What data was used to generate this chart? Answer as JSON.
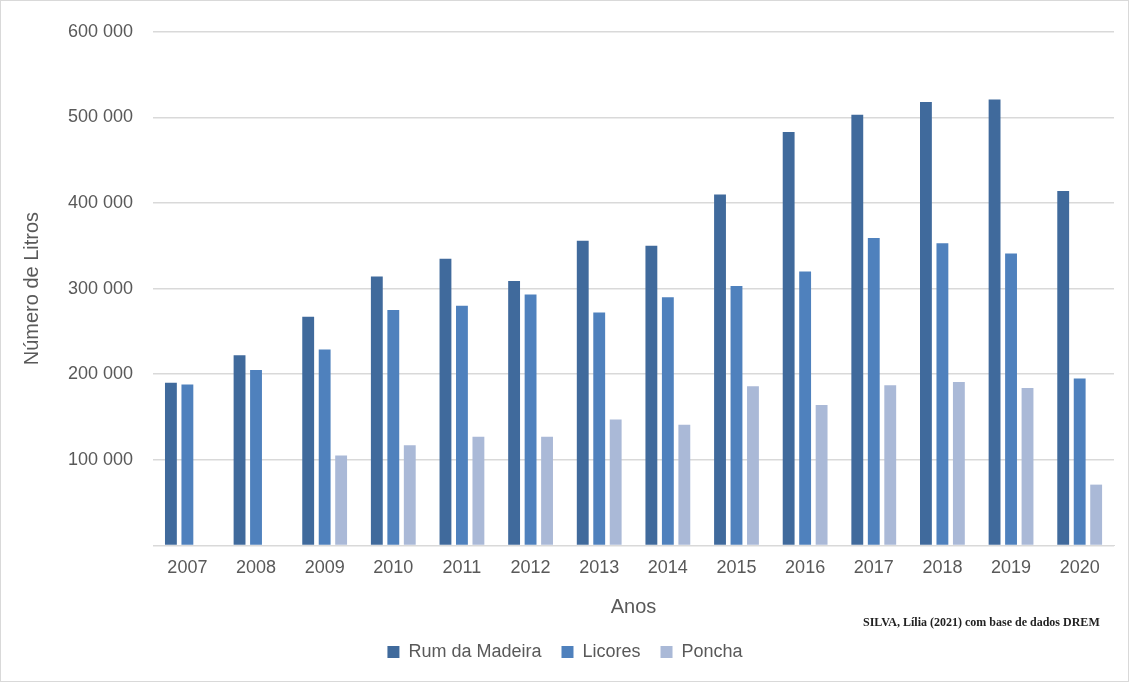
{
  "chart_data": {
    "type": "bar",
    "xlabel": "Anos",
    "ylabel": "Número de Litros",
    "categories": [
      "2007",
      "2008",
      "2009",
      "2010",
      "2011",
      "2012",
      "2013",
      "2014",
      "2015",
      "2016",
      "2017",
      "2018",
      "2019",
      "2020"
    ],
    "series": [
      {
        "name": "Rum da Madeira",
        "color": "#406a9c",
        "values": [
          190000,
          222000,
          267000,
          314000,
          335000,
          309000,
          356000,
          350000,
          410000,
          483000,
          503000,
          518000,
          521000,
          414000
        ]
      },
      {
        "name": "Licores",
        "color": "#4f81bd",
        "values": [
          188000,
          205000,
          229000,
          275000,
          280000,
          293000,
          272000,
          290000,
          303000,
          320000,
          359000,
          353000,
          341000,
          195000
        ]
      },
      {
        "name": "Poncha",
        "color": "#aab9d7",
        "values": [
          null,
          null,
          105000,
          117000,
          127000,
          127000,
          147000,
          141000,
          186000,
          164000,
          187000,
          191000,
          184000,
          71000
        ]
      }
    ],
    "ylim": [
      0,
      600000
    ],
    "yticks": [
      {
        "value": 0,
        "label": null
      },
      {
        "value": 100000,
        "label": "100 000"
      },
      {
        "value": 200000,
        "label": "200 000"
      },
      {
        "value": 300000,
        "label": "300 000"
      },
      {
        "value": 400000,
        "label": "400 000"
      },
      {
        "value": 500000,
        "label": "500 000"
      },
      {
        "value": 600000,
        "label": "600 000"
      }
    ],
    "grid": "y",
    "legend": "bottom",
    "annotations": [
      "SILVA, Lília (2021) com base de dados DREM"
    ]
  }
}
